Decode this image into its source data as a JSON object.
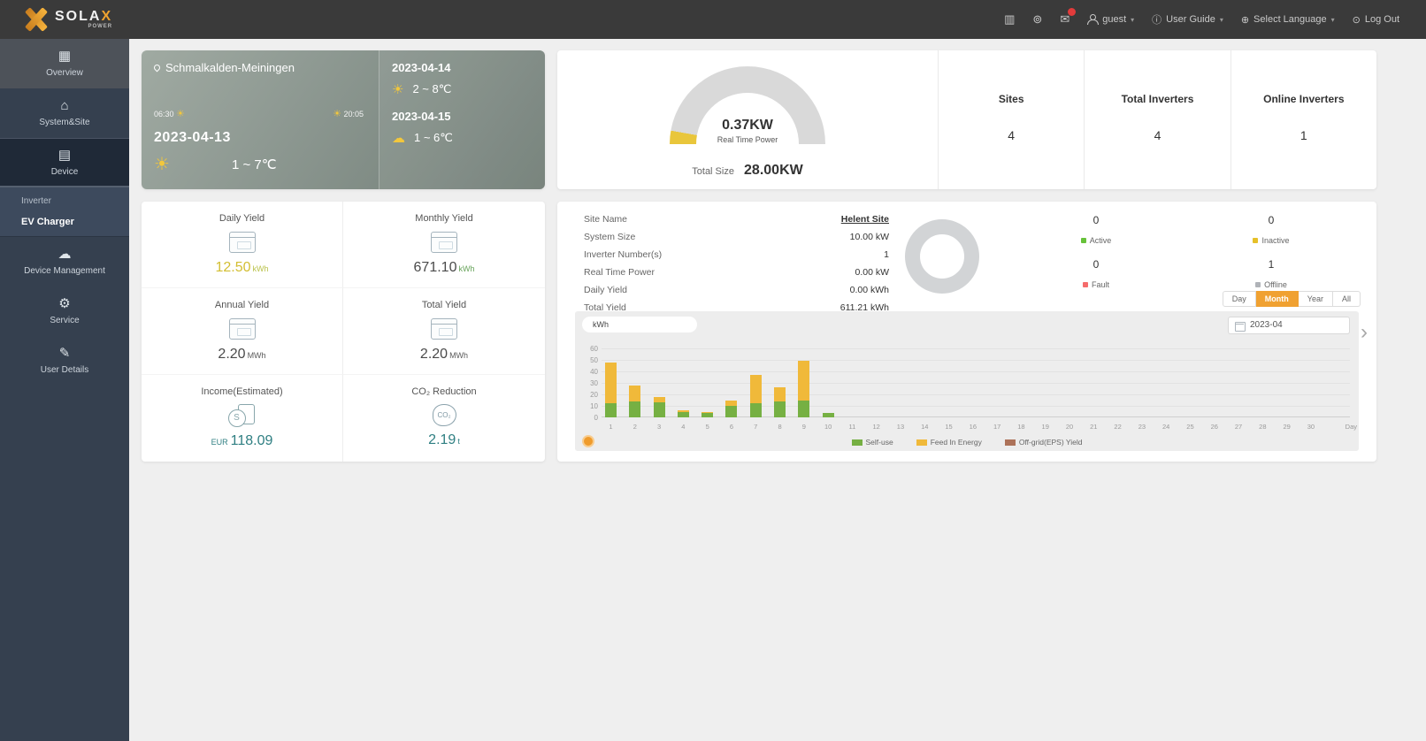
{
  "navbar": {
    "brand": "SOLA",
    "brand_x": "X",
    "brand_sub": "POWER",
    "user_label": "guest",
    "user_guide_label": "User Guide",
    "language_label": "Select Language",
    "logout_label": "Log Out"
  },
  "icons": {
    "report": "▥",
    "alarm": "⊚",
    "message": "✉",
    "guide": "ⓘ",
    "globe": "⊕",
    "power": "⊙",
    "caret": "▾",
    "overview": "▦",
    "home": "⌂",
    "device": "▤",
    "cloud": "☁",
    "gear": "⚙",
    "pencil": "✎",
    "sun": "☀",
    "cloud_sun": "☁",
    "co2_text": "CO₂",
    "chevron_right": "›"
  },
  "sidebar": {
    "overview": "Overview",
    "system_site": "System&Site",
    "device": "Device",
    "inverter": "Inverter",
    "ev_charger": "EV Charger",
    "device_management": "Device Management",
    "service": "Service",
    "user_details": "User Details"
  },
  "weather": {
    "location": "Schmalkalden-Meiningen",
    "sunrise": "06:30",
    "sunset": "20:05",
    "today_date": "2023-04-13",
    "today_temp": "1 ~ 7℃",
    "forecast": [
      {
        "date": "2023-04-14",
        "temp": "2 ~ 8℃"
      },
      {
        "date": "2023-04-15",
        "temp": "1 ~ 6℃"
      }
    ]
  },
  "power": {
    "realtime_value": "0.37KW",
    "realtime_label": "Real Time Power",
    "total_size_label": "Total Size",
    "total_size_value": "28.00KW"
  },
  "stats": [
    {
      "label": "Sites",
      "value": "4"
    },
    {
      "label": "Total Inverters",
      "value": "4"
    },
    {
      "label": "Online Inverters",
      "value": "1"
    }
  ],
  "yields": [
    {
      "label": "Daily Yield",
      "value": "12.50",
      "unit": "kWh"
    },
    {
      "label": "Monthly Yield",
      "value": "671.10",
      "unit": "kWh"
    },
    {
      "label": "Annual Yield",
      "value": "2.20",
      "unit": "MWh"
    },
    {
      "label": "Total Yield",
      "value": "2.20",
      "unit": "MWh"
    },
    {
      "label": "Income(Estimated)",
      "prefix": "EUR",
      "value": "118.09",
      "unit": ""
    },
    {
      "label": "CO₂ Reduction",
      "value": "2.19",
      "unit": "t"
    }
  ],
  "site": {
    "fields": [
      {
        "label": "Site Name",
        "value": "Helent Site"
      },
      {
        "label": "System Size",
        "value": "10.00 kW"
      },
      {
        "label": "Inverter Number(s)",
        "value": "1"
      },
      {
        "label": "Real Time Power",
        "value": "0.00 kW"
      },
      {
        "label": "Daily Yield",
        "value": "0.00 kWh"
      },
      {
        "label": "Total Yield",
        "value": "611.21 kWh"
      }
    ],
    "statuses": [
      {
        "label": "Active",
        "value": "0",
        "color": "#67c23a"
      },
      {
        "label": "Inactive",
        "value": "0",
        "color": "#e6c029"
      },
      {
        "label": "Fault",
        "value": "0",
        "color": "#f56c6c"
      },
      {
        "label": "Offline",
        "value": "1",
        "color": "#b0b3b8"
      }
    ],
    "period_buttons": [
      {
        "label": "Day"
      },
      {
        "label": "Month"
      },
      {
        "label": "Year"
      },
      {
        "label": "All"
      }
    ],
    "date_value": "2023-04"
  },
  "chart_data": {
    "type": "bar",
    "stacked": true,
    "unit_label": "kWh",
    "xlabel": "Day",
    "x": [
      1,
      2,
      3,
      4,
      5,
      6,
      7,
      8,
      9,
      10,
      11,
      12,
      13,
      14,
      15,
      16,
      17,
      18,
      19,
      20,
      21,
      22,
      23,
      24,
      25,
      26,
      27,
      28,
      29,
      30
    ],
    "series": [
      {
        "name": "Self-use",
        "color": "#76b043",
        "values": [
          12,
          14,
          13,
          5,
          4,
          10,
          12,
          14,
          15,
          4,
          0,
          0,
          0,
          0,
          0,
          0,
          0,
          0,
          0,
          0,
          0,
          0,
          0,
          0,
          0,
          0,
          0,
          0,
          0,
          0
        ]
      },
      {
        "name": "Feed In Energy",
        "color": "#f0b93a",
        "values": [
          36,
          14,
          5,
          1,
          1,
          5,
          25,
          12,
          34,
          0,
          0,
          0,
          0,
          0,
          0,
          0,
          0,
          0,
          0,
          0,
          0,
          0,
          0,
          0,
          0,
          0,
          0,
          0,
          0,
          0
        ]
      },
      {
        "name": "Off-grid(EPS) Yield",
        "color": "#ad7259",
        "values": [
          0,
          0,
          0,
          0,
          0,
          0,
          0,
          0,
          0,
          0,
          0,
          0,
          0,
          0,
          0,
          0,
          0,
          0,
          0,
          0,
          0,
          0,
          0,
          0,
          0,
          0,
          0,
          0,
          0,
          0
        ]
      }
    ],
    "ylim": [
      0,
      60
    ],
    "yticks": [
      0,
      10,
      20,
      30,
      40,
      50,
      60
    ],
    "legend_position": "bottom",
    "grid": true
  }
}
